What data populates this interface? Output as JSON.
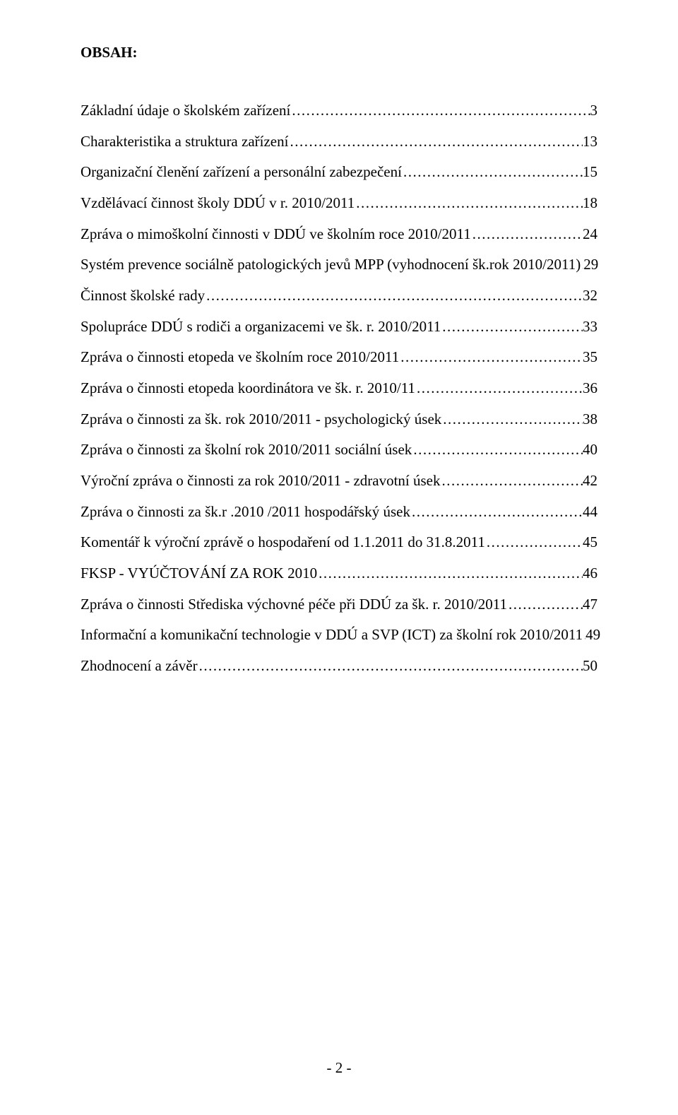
{
  "title": "OBSAH:",
  "toc": [
    {
      "text": "Základní údaje o školském zařízení",
      "page": "3"
    },
    {
      "text": "Charakteristika a struktura zařízení",
      "page": "13"
    },
    {
      "text": "Organizační členění zařízení a personální zabezpečení",
      "page": "15"
    },
    {
      "text": "Vzdělávací činnost školy DDÚ v r. 2010/2011",
      "page": "18"
    },
    {
      "text": "Zpráva o mimoškolní činnosti v DDÚ ve školním roce 2010/2011",
      "page": "24"
    },
    {
      "text": "Systém prevence sociálně patologických jevů MPP (vyhodnocení šk.rok 2010/2011)",
      "page": "29"
    },
    {
      "text": "Činnost školské rady",
      "page": "32"
    },
    {
      "text": "Spolupráce DDÚ s rodiči a organizacemi ve šk. r. 2010/2011",
      "page": "33"
    },
    {
      "text": "Zpráva o činnosti etopeda ve školním roce 2010/2011",
      "page": "35"
    },
    {
      "text": "Zpráva o činnosti etopeda koordinátora ve šk. r. 2010/11",
      "page": "36"
    },
    {
      "text": "Zpráva o činnosti za šk. rok 2010/2011 - psychologický úsek",
      "page": "38"
    },
    {
      "text": "Zpráva o činnosti za školní rok 2010/2011 sociální úsek",
      "page": "40"
    },
    {
      "text": "Výroční zpráva o činnosti za rok 2010/2011 - zdravotní úsek",
      "page": "42"
    },
    {
      "text": "Zpráva o činnosti za šk.r .2010 /2011                                  hospodářský úsek",
      "page": "44"
    },
    {
      "text": "Komentář k výroční zprávě o hospodaření od 1.1.2011 do 31.8.2011",
      "page": "45"
    },
    {
      "text": "FKSP - VYÚČTOVÁNÍ ZA ROK 2010",
      "page": "46"
    },
    {
      "text": "Zpráva o činnosti Střediska výchovné péče při DDÚ za šk. r. 2010/2011",
      "page": "47"
    },
    {
      "text": "Informační a komunikační technologie v DDÚ a SVP (ICT)      za školní rok 2010/2011",
      "page": "49"
    },
    {
      "text": "Zhodnocení a závěr",
      "page": "50"
    }
  ],
  "footer": "- 2 -"
}
